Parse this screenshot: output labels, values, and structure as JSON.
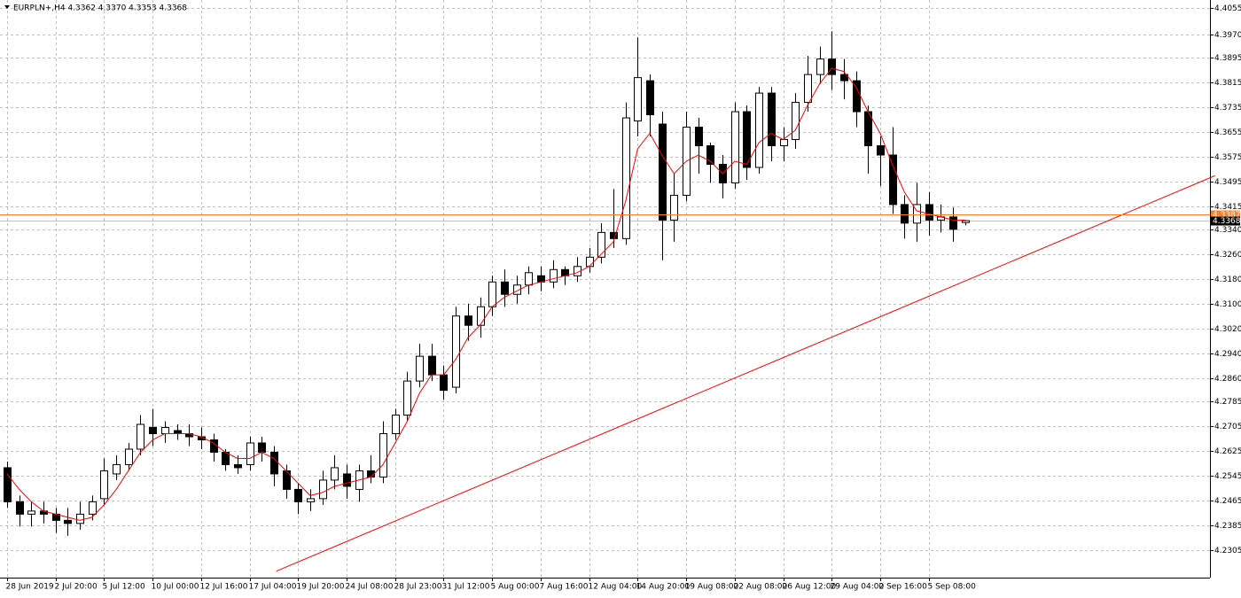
{
  "chart_data": {
    "type": "candlestick",
    "title": "EURPLN+,H4  4.3362 4.3370 4.3353 4.3368",
    "categories": [
      "28 Jun 2019",
      null,
      null,
      null,
      "2 Jul 20:00",
      null,
      null,
      null,
      "5 Jul 12:00",
      null,
      null,
      null,
      "10 Jul 00:00",
      null,
      null,
      null,
      "12 Jul 16:00",
      null,
      null,
      null,
      "17 Jul 04:00",
      null,
      null,
      null,
      "19 Jul 20:00",
      null,
      null,
      null,
      "24 Jul 08:00",
      null,
      null,
      null,
      "28 Jul 23:00",
      null,
      null,
      null,
      "31 Jul 12:00",
      null,
      null,
      null,
      "5 Aug 00:00",
      null,
      null,
      null,
      "7 Aug 16:00",
      null,
      null,
      null,
      "12 Aug 04:00",
      null,
      null,
      null,
      "14 Aug 20:00",
      null,
      null,
      null,
      "19 Aug 08:00",
      null,
      null,
      null,
      "22 Aug 08:00",
      null,
      null,
      null,
      "26 Aug 12:00",
      null,
      null,
      null,
      "29 Aug 04:00",
      null,
      null,
      null,
      "2 Sep 16:00",
      null,
      null,
      null,
      "5 Sep 08:00",
      null,
      null,
      null
    ],
    "open": [
      4.257,
      4.246,
      4.242,
      4.243,
      4.242,
      4.24,
      4.239,
      4.242,
      4.247,
      4.255,
      4.258,
      4.263,
      4.27,
      4.268,
      4.269,
      4.268,
      4.267,
      4.266,
      4.262,
      4.258,
      4.258,
      4.265,
      4.262,
      4.256,
      4.25,
      4.246,
      4.247,
      4.253,
      4.255,
      4.25,
      4.256,
      4.254,
      4.268,
      4.274,
      4.285,
      4.293,
      4.287,
      4.283,
      4.306,
      4.303,
      4.309,
      4.317,
      4.313,
      4.316,
      4.319,
      4.317,
      4.321,
      4.319,
      4.322,
      4.325,
      4.333,
      4.331,
      4.369,
      4.382,
      4.368,
      4.337,
      4.345,
      4.367,
      4.361,
      4.355,
      4.349,
      4.372,
      4.354,
      4.378,
      4.361,
      4.363,
      4.375,
      4.384,
      4.389,
      4.384,
      4.382,
      4.372,
      4.361,
      4.358,
      4.342,
      4.336,
      4.342,
      4.337,
      4.338,
      4.3362
    ],
    "high": [
      4.259,
      4.248,
      4.246,
      4.246,
      4.244,
      4.244,
      4.246,
      4.248,
      4.26,
      4.261,
      4.265,
      4.274,
      4.276,
      4.272,
      4.271,
      4.271,
      4.27,
      4.268,
      4.263,
      4.261,
      4.267,
      4.267,
      4.264,
      4.258,
      4.252,
      4.25,
      4.256,
      4.261,
      4.258,
      4.258,
      4.261,
      4.272,
      4.276,
      4.288,
      4.297,
      4.297,
      4.29,
      4.309,
      4.31,
      4.312,
      4.319,
      4.321,
      4.319,
      4.322,
      4.322,
      4.324,
      4.322,
      4.325,
      4.328,
      4.336,
      4.347,
      4.375,
      4.396,
      4.384,
      4.372,
      4.352,
      4.372,
      4.37,
      4.362,
      4.358,
      4.375,
      4.374,
      4.38,
      4.38,
      4.367,
      4.378,
      4.39,
      4.393,
      4.398,
      4.389,
      4.385,
      4.374,
      4.364,
      4.367,
      4.345,
      4.349,
      4.346,
      4.342,
      4.341,
      4.337
    ],
    "low": [
      4.244,
      4.238,
      4.238,
      4.239,
      4.236,
      4.235,
      4.237,
      4.24,
      4.245,
      4.253,
      4.256,
      4.261,
      4.264,
      4.265,
      4.266,
      4.264,
      4.263,
      4.259,
      4.256,
      4.255,
      4.256,
      4.259,
      4.251,
      4.247,
      4.242,
      4.243,
      4.245,
      4.25,
      4.247,
      4.246,
      4.252,
      4.252,
      4.266,
      4.272,
      4.283,
      4.285,
      4.279,
      4.281,
      4.298,
      4.299,
      4.306,
      4.309,
      4.31,
      4.313,
      4.314,
      4.315,
      4.316,
      4.317,
      4.32,
      4.323,
      4.328,
      4.329,
      4.364,
      4.364,
      4.324,
      4.33,
      4.343,
      4.352,
      4.349,
      4.344,
      4.347,
      4.35,
      4.352,
      4.356,
      4.356,
      4.36,
      4.372,
      4.381,
      4.379,
      4.376,
      4.367,
      4.352,
      4.348,
      4.339,
      4.331,
      4.33,
      4.332,
      4.333,
      4.33,
      4.3353
    ],
    "close": [
      4.246,
      4.242,
      4.243,
      4.242,
      4.24,
      4.239,
      4.242,
      4.246,
      4.256,
      4.258,
      4.263,
      4.271,
      4.268,
      4.27,
      4.268,
      4.267,
      4.266,
      4.262,
      4.258,
      4.257,
      4.265,
      4.262,
      4.255,
      4.25,
      4.246,
      4.247,
      4.253,
      4.257,
      4.251,
      4.256,
      4.254,
      4.268,
      4.274,
      4.285,
      4.293,
      4.287,
      4.282,
      4.306,
      4.303,
      4.309,
      4.317,
      4.313,
      4.316,
      4.32,
      4.317,
      4.321,
      4.319,
      4.322,
      4.325,
      4.333,
      4.331,
      4.37,
      4.383,
      4.371,
      4.337,
      4.345,
      4.367,
      4.361,
      4.355,
      4.349,
      4.372,
      4.354,
      4.378,
      4.361,
      4.363,
      4.375,
      4.384,
      4.389,
      4.384,
      4.382,
      4.372,
      4.361,
      4.358,
      4.342,
      4.336,
      4.342,
      4.337,
      4.338,
      4.334,
      4.3368
    ],
    "moving_average": {
      "color": "#ff0000",
      "values": [
        4.255,
        4.25,
        4.246,
        4.243,
        4.242,
        4.241,
        4.24,
        4.241,
        4.245,
        4.25,
        4.256,
        4.262,
        4.266,
        4.268,
        4.268,
        4.268,
        4.267,
        4.265,
        4.262,
        4.26,
        4.26,
        4.262,
        4.26,
        4.256,
        4.252,
        4.248,
        4.249,
        4.251,
        4.252,
        4.253,
        4.254,
        4.258,
        4.265,
        4.272,
        4.281,
        4.287,
        4.287,
        4.292,
        4.299,
        4.303,
        4.309,
        4.312,
        4.314,
        4.316,
        4.317,
        4.318,
        4.319,
        4.32,
        4.322,
        4.326,
        4.33,
        4.343,
        4.36,
        4.365,
        4.358,
        4.352,
        4.356,
        4.358,
        4.356,
        4.352,
        4.356,
        4.355,
        4.362,
        4.365,
        4.363,
        4.366,
        4.374,
        4.381,
        4.386,
        4.385,
        4.38,
        4.372,
        4.365,
        4.355,
        4.346,
        4.34,
        4.339,
        4.338,
        4.337,
        4.337
      ]
    },
    "trendline": {
      "color": "#ff0000",
      "x": [
        22.2,
        99.6
      ],
      "values": [
        4.2236,
        4.3513
      ]
    },
    "hline": {
      "value": 4.3387,
      "label": "4.3387",
      "color": "#ff7f27"
    },
    "bid": {
      "value": 4.3368,
      "label": "4.3368"
    },
    "ylim": [
      4.2215,
      4.4075
    ],
    "yticks": [
      {
        "value": 4.4055,
        "label": "4.4055"
      },
      {
        "value": 4.397,
        "label": "4.3970"
      },
      {
        "value": 4.3895,
        "label": "4.3895"
      },
      {
        "value": 4.3815,
        "label": "4.3815"
      },
      {
        "value": 4.3735,
        "label": "4.3735"
      },
      {
        "value": 4.3655,
        "label": "4.3655"
      },
      {
        "value": 4.3575,
        "label": "4.3575"
      },
      {
        "value": 4.3495,
        "label": "4.3495"
      },
      {
        "value": 4.3415,
        "label": "4.3415"
      },
      {
        "value": 4.334,
        "label": "4.3340"
      },
      {
        "value": 4.326,
        "label": "4.3260"
      },
      {
        "value": 4.318,
        "label": "4.3180"
      },
      {
        "value": 4.31,
        "label": "4.3100"
      },
      {
        "value": 4.302,
        "label": "4.3020"
      },
      {
        "value": 4.294,
        "label": "4.2940"
      },
      {
        "value": 4.286,
        "label": "4.2860"
      },
      {
        "value": 4.2785,
        "label": "4.2785"
      },
      {
        "value": 4.2705,
        "label": "4.2705"
      },
      {
        "value": 4.2625,
        "label": "4.2625"
      },
      {
        "value": 4.2545,
        "label": "4.2545"
      },
      {
        "value": 4.2465,
        "label": "4.2465"
      },
      {
        "value": 4.2385,
        "label": "4.2385"
      },
      {
        "value": 4.2305,
        "label": "4.2305"
      }
    ],
    "grid": true
  }
}
